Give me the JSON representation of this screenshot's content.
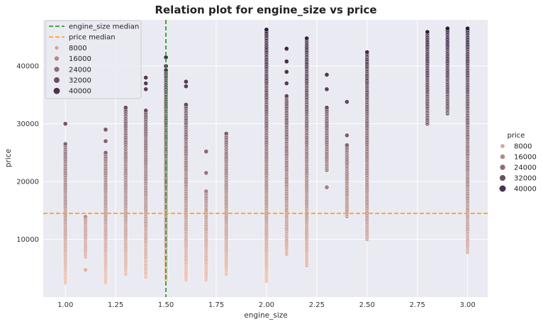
{
  "chart_data": {
    "type": "scatter",
    "title": "Relation plot for engine_size vs price",
    "xlabel": "engine_size",
    "ylabel": "price",
    "xlim": [
      0.89,
      3.1
    ],
    "ylim": [
      0,
      48000
    ],
    "xticks": [
      "1.00",
      "1.25",
      "1.50",
      "1.75",
      "2.00",
      "2.25",
      "2.50",
      "2.75",
      "3.00"
    ],
    "yticks": [
      "10000",
      "20000",
      "30000",
      "40000"
    ],
    "grid": true,
    "hue_variable": "price",
    "hue_palette": {
      "low": "#ecbcac",
      "high": "#2e1c3d"
    },
    "hue_range": [
      2500,
      46500
    ],
    "reference_lines": [
      {
        "name": "engine_size median",
        "orientation": "vertical",
        "value": 1.5,
        "color": "#2ca02c"
      },
      {
        "name": "price median",
        "orientation": "horizontal",
        "value": 14495,
        "color": "#ffa726"
      }
    ],
    "inner_legend": {
      "placement": "upper-left",
      "entries": [
        "engine_size median",
        "price median",
        "8000",
        "16000",
        "24000",
        "32000",
        "40000"
      ]
    },
    "outer_legend": {
      "title": "price",
      "placement": "right",
      "entries": [
        "8000",
        "16000",
        "24000",
        "32000",
        "40000"
      ]
    },
    "columns": [
      {
        "x": 1.0,
        "ranges": [
          [
            2500,
            26500
          ]
        ],
        "extra": [
          30000
        ]
      },
      {
        "x": 1.1,
        "ranges": [
          [
            7000,
            14000
          ]
        ],
        "extra": [
          4700
        ]
      },
      {
        "x": 1.2,
        "ranges": [
          [
            2500,
            25000
          ]
        ],
        "extra": [
          27000,
          29000
        ]
      },
      {
        "x": 1.3,
        "ranges": [
          [
            4000,
            33000
          ]
        ],
        "extra": []
      },
      {
        "x": 1.4,
        "ranges": [
          [
            3500,
            32500
          ]
        ],
        "extra": [
          36000,
          37000,
          38000
        ]
      },
      {
        "x": 1.5,
        "ranges": [
          [
            3000,
            39500
          ]
        ],
        "extra": [
          40000,
          41500
        ]
      },
      {
        "x": 1.6,
        "ranges": [
          [
            3000,
            33500
          ]
        ],
        "extra": [
          36500,
          37300
        ]
      },
      {
        "x": 1.7,
        "ranges": [
          [
            3000,
            18500
          ]
        ],
        "extra": [
          21500,
          25200
        ]
      },
      {
        "x": 1.8,
        "ranges": [
          [
            4000,
            28500
          ]
        ],
        "extra": []
      },
      {
        "x": 2.0,
        "ranges": [
          [
            2800,
            46500
          ]
        ],
        "extra": []
      },
      {
        "x": 2.1,
        "ranges": [
          [
            7500,
            35000
          ]
        ],
        "extra": [
          37000,
          39000,
          40800,
          43000
        ]
      },
      {
        "x": 2.2,
        "ranges": [
          [
            5500,
            45000
          ]
        ],
        "extra": []
      },
      {
        "x": 2.3,
        "ranges": [
          [
            22000,
            33000
          ]
        ],
        "extra": [
          19000,
          36000,
          38500
        ]
      },
      {
        "x": 2.4,
        "ranges": [
          [
            14000,
            26500
          ]
        ],
        "extra": [
          28000,
          33800
        ]
      },
      {
        "x": 2.5,
        "ranges": [
          [
            10000,
            42500
          ]
        ],
        "extra": []
      },
      {
        "x": 2.8,
        "ranges": [
          [
            30000,
            46000
          ]
        ],
        "extra": []
      },
      {
        "x": 2.9,
        "ranges": [
          [
            31800,
            46500
          ]
        ],
        "extra": []
      },
      {
        "x": 3.0,
        "ranges": [
          [
            7800,
            46500
          ]
        ],
        "extra": []
      }
    ]
  }
}
